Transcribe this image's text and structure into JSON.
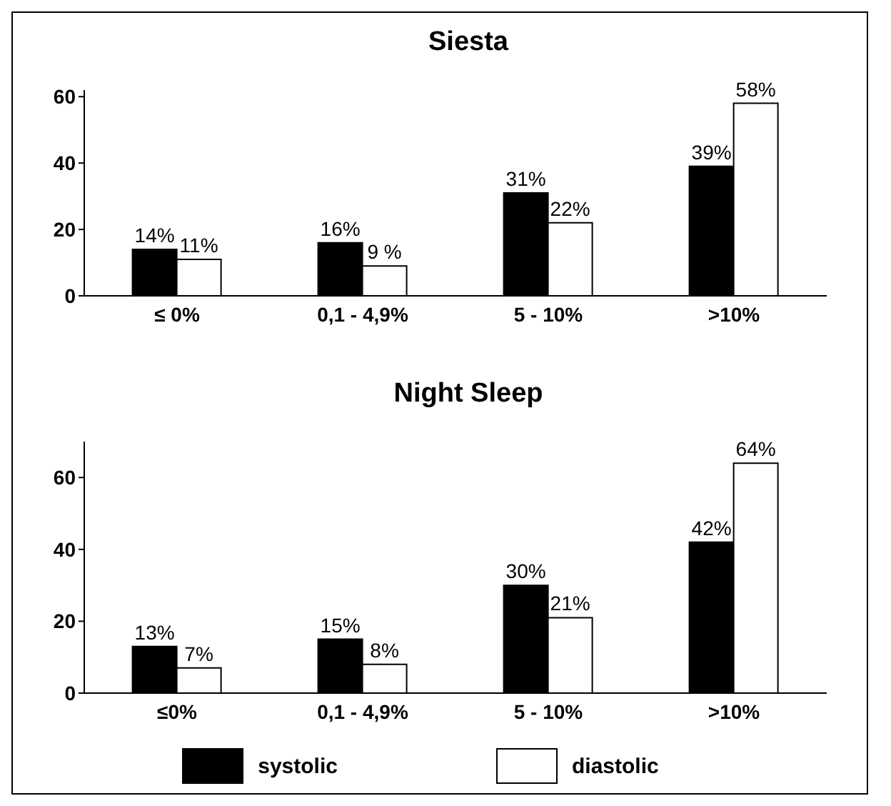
{
  "chart_data": [
    {
      "type": "bar",
      "title": "Siesta",
      "categories": [
        "≤ 0%",
        "0,1 - 4,9%",
        "5 - 10%",
        ">10%"
      ],
      "series": [
        {
          "color": "#000000",
          "values": [
            14,
            16,
            31,
            39
          ],
          "value_labels": [
            "14%",
            "16%",
            "31%",
            "39%"
          ]
        },
        {
          "color": "#ffffff",
          "values": [
            11,
            9,
            22,
            58
          ],
          "value_labels": [
            "11%",
            "9 %",
            "22%",
            "58%"
          ]
        }
      ],
      "ylim": [
        0,
        62
      ],
      "yticks": [
        0,
        20,
        40,
        60
      ],
      "grid": false,
      "legend": false
    },
    {
      "type": "bar",
      "title": "Night Sleep",
      "categories": [
        "≤0%",
        "0,1 - 4,9%",
        "5 - 10%",
        ">10%"
      ],
      "series": [
        {
          "name": "systolic",
          "color": "#000000",
          "values": [
            13,
            15,
            30,
            42
          ],
          "value_labels": [
            "13%",
            "15%",
            "30%",
            "42%"
          ]
        },
        {
          "name": "diastolic",
          "color": "#ffffff",
          "values": [
            7,
            8,
            21,
            64
          ],
          "value_labels": [
            "7%",
            "8%",
            "21%",
            "64%"
          ]
        }
      ],
      "ylim": [
        0,
        70
      ],
      "yticks": [
        0,
        20,
        40,
        60
      ],
      "grid": false,
      "legend": "bottom"
    }
  ]
}
